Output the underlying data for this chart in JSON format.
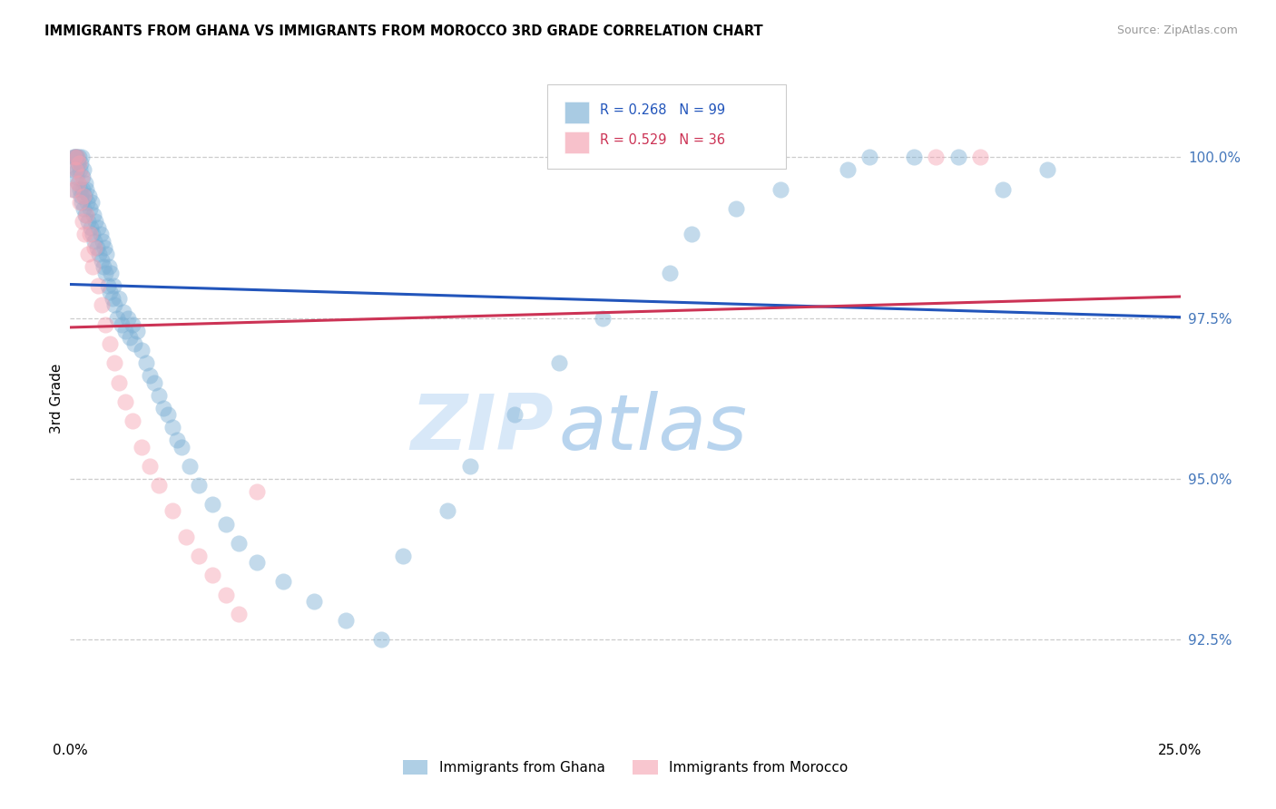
{
  "title": "IMMIGRANTS FROM GHANA VS IMMIGRANTS FROM MOROCCO 3RD GRADE CORRELATION CHART",
  "source": "Source: ZipAtlas.com",
  "ylabel": "3rd Grade",
  "y_ticks": [
    92.5,
    95.0,
    97.5,
    100.0
  ],
  "y_tick_labels": [
    "92.5%",
    "95.0%",
    "97.5%",
    "100.0%"
  ],
  "xlim": [
    0.0,
    25.0
  ],
  "ylim": [
    91.0,
    101.5
  ],
  "ghana_R": 0.268,
  "ghana_N": 99,
  "morocco_R": 0.529,
  "morocco_N": 36,
  "ghana_color": "#7BAFD4",
  "morocco_color": "#F4A0B0",
  "ghana_line_color": "#2255BB",
  "morocco_line_color": "#CC3355",
  "watermark_zip": "ZIP",
  "watermark_atlas": "atlas",
  "watermark_color": "#D8E8F8",
  "ghana_label": "Immigrants from Ghana",
  "morocco_label": "Immigrants from Morocco",
  "legend_text_blue": "R = 0.268   N = 99",
  "legend_text_pink": "R = 0.529   N = 36",
  "ghana_x": [
    0.05,
    0.08,
    0.1,
    0.1,
    0.12,
    0.13,
    0.14,
    0.15,
    0.16,
    0.17,
    0.18,
    0.2,
    0.21,
    0.22,
    0.23,
    0.24,
    0.25,
    0.26,
    0.27,
    0.28,
    0.3,
    0.3,
    0.32,
    0.34,
    0.35,
    0.36,
    0.38,
    0.4,
    0.42,
    0.44,
    0.46,
    0.48,
    0.5,
    0.52,
    0.55,
    0.57,
    0.6,
    0.62,
    0.65,
    0.68,
    0.7,
    0.72,
    0.75,
    0.78,
    0.8,
    0.82,
    0.85,
    0.88,
    0.9,
    0.92,
    0.95,
    0.98,
    1.0,
    1.05,
    1.1,
    1.15,
    1.2,
    1.25,
    1.3,
    1.35,
    1.4,
    1.45,
    1.5,
    1.6,
    1.7,
    1.8,
    1.9,
    2.0,
    2.1,
    2.2,
    2.3,
    2.4,
    2.5,
    2.7,
    2.9,
    3.2,
    3.5,
    3.8,
    4.2,
    4.8,
    5.5,
    6.2,
    7.0,
    7.5,
    8.5,
    9.0,
    10.0,
    11.0,
    12.0,
    13.5,
    14.0,
    15.0,
    16.0,
    17.5,
    18.0,
    19.0,
    20.0,
    21.0,
    22.0
  ],
  "ghana_y": [
    99.8,
    100.0,
    100.0,
    99.5,
    100.0,
    99.7,
    100.0,
    99.8,
    100.0,
    99.6,
    99.9,
    100.0,
    99.5,
    99.8,
    99.4,
    99.9,
    100.0,
    99.3,
    99.7,
    99.5,
    99.2,
    99.8,
    99.4,
    99.6,
    99.1,
    99.5,
    99.3,
    99.0,
    99.4,
    99.2,
    98.9,
    99.3,
    98.8,
    99.1,
    98.7,
    99.0,
    98.6,
    98.9,
    98.5,
    98.8,
    98.4,
    98.7,
    98.3,
    98.6,
    98.2,
    98.5,
    98.0,
    98.3,
    97.9,
    98.2,
    97.8,
    98.0,
    97.7,
    97.5,
    97.8,
    97.4,
    97.6,
    97.3,
    97.5,
    97.2,
    97.4,
    97.1,
    97.3,
    97.0,
    96.8,
    96.6,
    96.5,
    96.3,
    96.1,
    96.0,
    95.8,
    95.6,
    95.5,
    95.2,
    94.9,
    94.6,
    94.3,
    94.0,
    93.7,
    93.4,
    93.1,
    92.8,
    92.5,
    93.8,
    94.5,
    95.2,
    96.0,
    96.8,
    97.5,
    98.2,
    98.8,
    99.2,
    99.5,
    99.8,
    100.0,
    100.0,
    100.0,
    99.5,
    99.8
  ],
  "morocco_x": [
    0.06,
    0.1,
    0.12,
    0.15,
    0.18,
    0.2,
    0.22,
    0.25,
    0.28,
    0.3,
    0.33,
    0.36,
    0.4,
    0.45,
    0.5,
    0.55,
    0.62,
    0.7,
    0.8,
    0.9,
    1.0,
    1.1,
    1.25,
    1.4,
    1.6,
    1.8,
    2.0,
    2.3,
    2.6,
    2.9,
    3.2,
    3.5,
    3.8,
    4.2,
    19.5,
    20.5
  ],
  "morocco_y": [
    99.5,
    100.0,
    99.8,
    100.0,
    99.6,
    99.9,
    99.3,
    99.7,
    99.0,
    99.4,
    98.8,
    99.1,
    98.5,
    98.8,
    98.3,
    98.6,
    98.0,
    97.7,
    97.4,
    97.1,
    96.8,
    96.5,
    96.2,
    95.9,
    95.5,
    95.2,
    94.9,
    94.5,
    94.1,
    93.8,
    93.5,
    93.2,
    92.9,
    94.8,
    100.0,
    100.0
  ]
}
